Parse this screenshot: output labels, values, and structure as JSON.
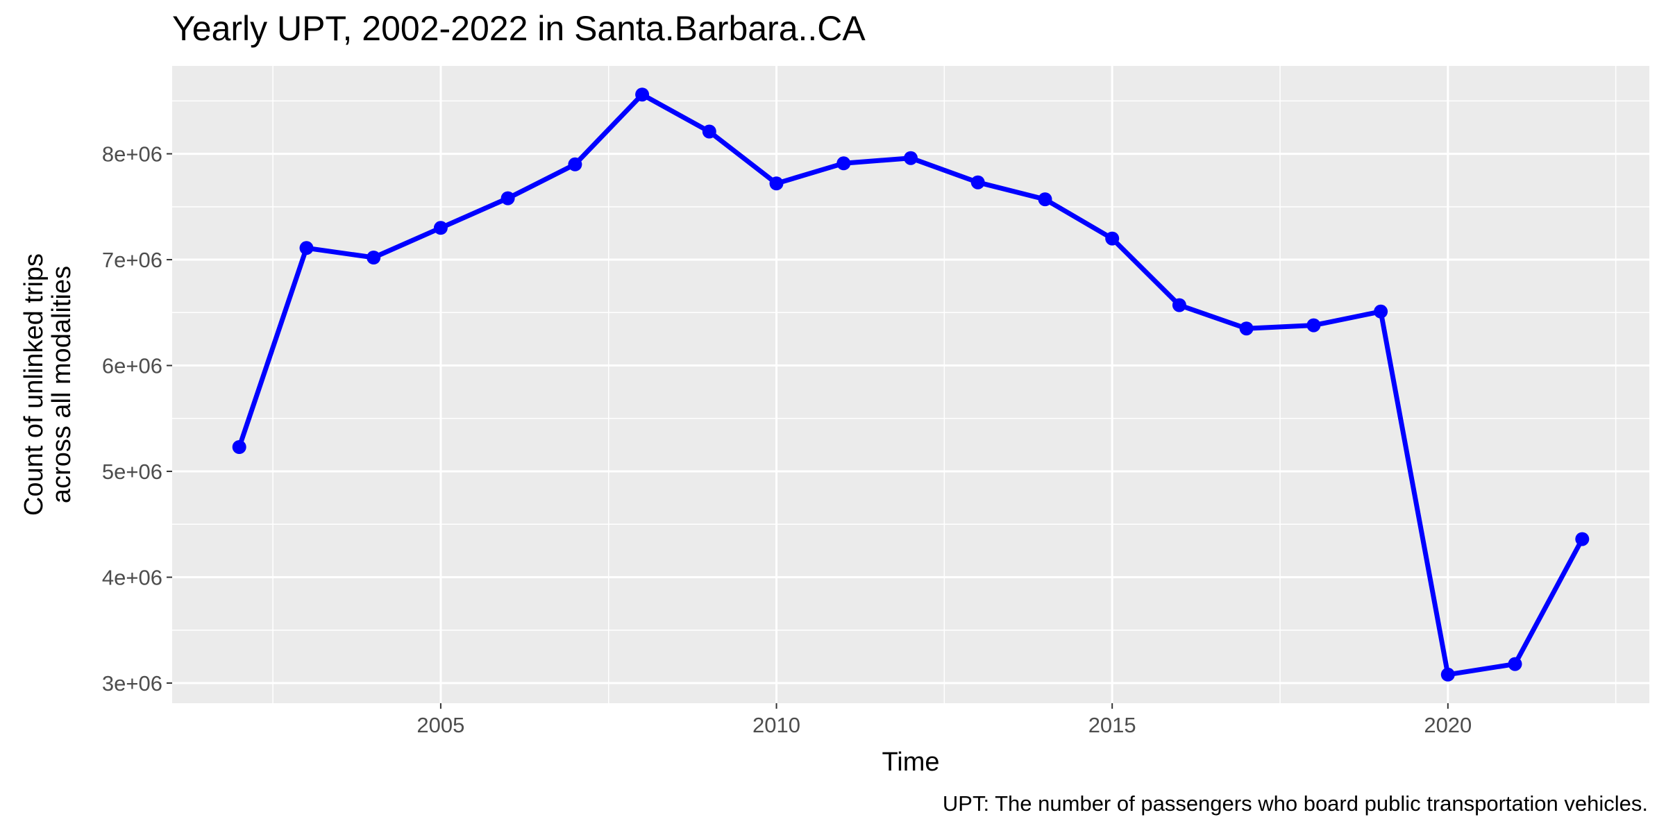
{
  "chart_data": {
    "type": "line",
    "title": "Yearly UPT, 2002-2022 in Santa.Barbara..CA",
    "xlabel": "Time",
    "ylabel_lines": [
      "Count of unlinked trips",
      "across all modalities"
    ],
    "caption": "UPT: The number of passengers who board public transportation vehicles.",
    "x": [
      2002,
      2003,
      2004,
      2005,
      2006,
      2007,
      2008,
      2009,
      2010,
      2011,
      2012,
      2013,
      2014,
      2015,
      2016,
      2017,
      2018,
      2019,
      2020,
      2021,
      2022
    ],
    "values": [
      5230000,
      7110000,
      7020000,
      7300000,
      7580000,
      7900000,
      8560000,
      8210000,
      7720000,
      7910000,
      7960000,
      7730000,
      7570000,
      7200000,
      6570000,
      6350000,
      6380000,
      6510000,
      3080000,
      3180000,
      4360000
    ],
    "xlim": [
      2001,
      2023
    ],
    "ylim": [
      2810000,
      8830000
    ],
    "x_ticks": [
      2005,
      2010,
      2015,
      2020
    ],
    "x_tick_labels": [
      "2005",
      "2010",
      "2015",
      "2020"
    ],
    "y_ticks": [
      3000000,
      4000000,
      5000000,
      6000000,
      7000000,
      8000000
    ],
    "y_tick_labels": [
      "3e+06",
      "4e+06",
      "5e+06",
      "6e+06",
      "7e+06",
      "8e+06"
    ],
    "grid": true,
    "legend": "none",
    "colors": {
      "series": "#0000ff",
      "panel_background": "#ebebeb",
      "grid_line": "#ffffff",
      "tick_mark": "#333333"
    }
  }
}
